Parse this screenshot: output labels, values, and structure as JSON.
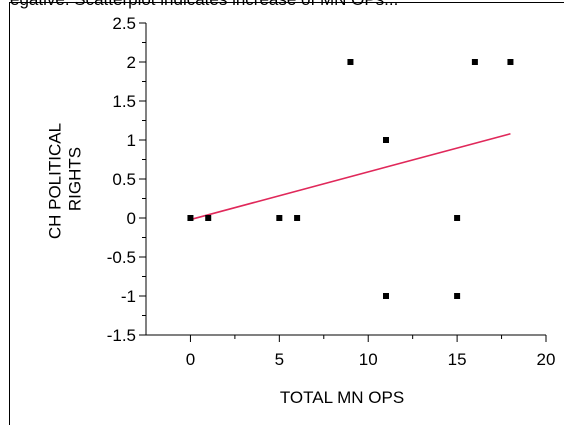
{
  "caption": "egative. Scatterplot indicates increase of MN OPs...",
  "chart_data": {
    "type": "scatter",
    "xlabel": "TOTAL MN OPS",
    "ylabel_lines": [
      "CH POLITICAL",
      "RIGHTS"
    ],
    "xlim": [
      -2.5,
      20
    ],
    "ylim": [
      -1.5,
      2.5
    ],
    "xticks": [
      0,
      5,
      10,
      15,
      20
    ],
    "xtick_labels": [
      "0",
      "5",
      "10",
      "15",
      "20"
    ],
    "yticks": [
      2.5,
      2,
      1.5,
      1,
      0.5,
      0,
      -0.5,
      -1,
      -1.5
    ],
    "ytick_labels": [
      "2.5",
      "2",
      "1.5",
      "1",
      "0.5",
      "0",
      "-0.5",
      "-1",
      "-1.5"
    ],
    "points": [
      {
        "x": 0,
        "y": 0
      },
      {
        "x": 1,
        "y": 0
      },
      {
        "x": 5,
        "y": 0
      },
      {
        "x": 6,
        "y": 0
      },
      {
        "x": 9,
        "y": 2
      },
      {
        "x": 11,
        "y": 1
      },
      {
        "x": 11,
        "y": -1
      },
      {
        "x": 15,
        "y": 0
      },
      {
        "x": 15,
        "y": -1
      },
      {
        "x": 16,
        "y": 2
      },
      {
        "x": 18,
        "y": 2
      }
    ],
    "fit_line": {
      "x": [
        0,
        18
      ],
      "y": [
        -0.02,
        1.08
      ],
      "color": "#e0285a"
    },
    "point_color": "#000000",
    "grid": false
  }
}
